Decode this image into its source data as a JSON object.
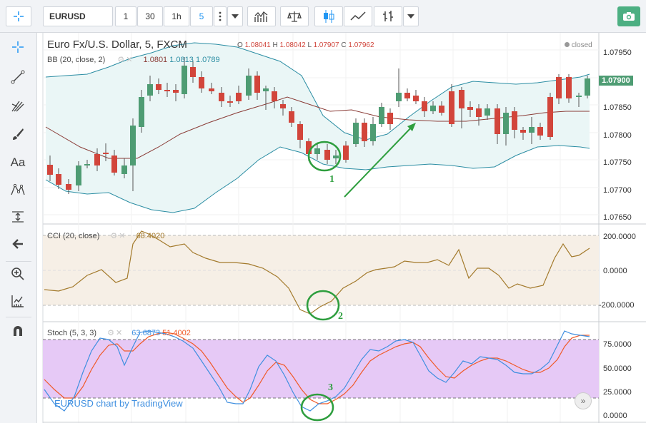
{
  "toolbar": {
    "symbol": "EURUSD",
    "intervals": [
      "1",
      "30",
      "1h",
      "5"
    ],
    "active_interval": "5",
    "more_icon": "vertical-dots-icon",
    "dropdown_icon": "chevron-down-icon",
    "indicators_icon": "bar-chart-icon",
    "compare_icon": "scales-icon",
    "candles_icon": "candlestick-icon",
    "area_icon": "area-chart-icon",
    "bars_icon": "ohlc-bars-icon",
    "snapshot_icon": "camera-icon"
  },
  "sidebar": {
    "tools": [
      {
        "name": "crosshair-icon"
      },
      {
        "name": "trend-line-icon"
      },
      {
        "name": "pitchfork-icon"
      },
      {
        "name": "brush-icon"
      },
      {
        "name": "text-icon",
        "label": "Aa"
      },
      {
        "name": "pattern-icon"
      },
      {
        "name": "measure-icon"
      },
      {
        "name": "arrow-left-icon"
      },
      {
        "name": "zoom-in-icon"
      },
      {
        "name": "ruler-icon"
      },
      {
        "name": "magnet-icon"
      }
    ]
  },
  "main": {
    "title": "Euro Fx/U.S. Dollar, 5, FXCM",
    "ohlc": {
      "o_label": "O",
      "o": "1.08041",
      "h_label": "H",
      "h": "1.08042",
      "l_label": "L",
      "l": "1.07907",
      "c_label": "C",
      "c": "1.07962"
    },
    "status": "closed",
    "bb_label": "BB (20, close, 2)",
    "bb_values": [
      "1.0801",
      "1.0813",
      "1.0789"
    ],
    "price_ticks": [
      "1.07950",
      "1.07900",
      "1.07850",
      "1.07800",
      "1.07750",
      "1.07700",
      "1.07650"
    ],
    "last_price": "1.07900"
  },
  "cci": {
    "label": "CCI (20, close)",
    "value": "68.4020",
    "ticks": [
      "200.0000",
      "0.0000",
      "-200.0000"
    ]
  },
  "stoch": {
    "label": "Stoch (5, 3, 3)",
    "k_value": "63.6873",
    "d_value": "51.4002",
    "ticks": [
      "75.0000",
      "50.0000",
      "25.0000",
      "0.0000"
    ]
  },
  "watermark": "EURUSD chart by TradingView",
  "annotations": [
    "1",
    "2",
    "3"
  ],
  "colors": {
    "bull": "#4e9c73",
    "bear": "#d2453b",
    "bb_band": "#2b8da3",
    "bb_mid": "#8a3b36",
    "bb_fill": "#eaf6f6",
    "cci_line": "#a37a2c",
    "cci_fill": "#f6efe6",
    "stoch_k": "#3f8fe0",
    "stoch_d": "#f05a28",
    "stoch_fill": "#e6c9f6",
    "annotation": "#2e9e3e",
    "accent": "#2196f3"
  }
}
